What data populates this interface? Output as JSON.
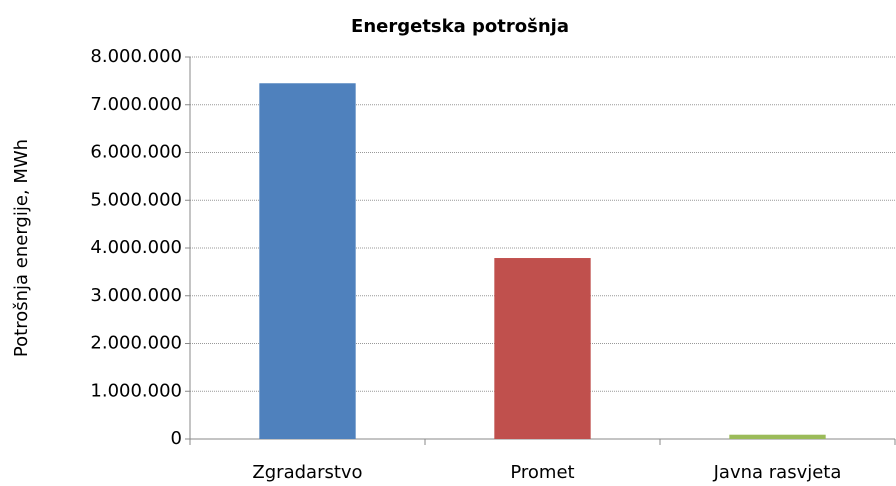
{
  "chart_data": {
    "type": "bar",
    "title": "Energetska potrošnja",
    "y_label": "Potrošnja energije, MWh",
    "categories": [
      "Zgradarstvo",
      "Promet",
      "Javna rasvjeta"
    ],
    "values": [
      7450000,
      3790000,
      90000
    ],
    "colors": [
      "#4f81bd",
      "#c0504d",
      "#9bbb59"
    ],
    "ylim": [
      0,
      8000000
    ],
    "yticks": [
      0,
      {
        "value": 1000000,
        "label": "1.000.000"
      },
      {
        "value": 2000000,
        "label": "2.000.000"
      },
      {
        "value": 3000000,
        "label": "3.000.000"
      },
      {
        "value": 4000000,
        "label": "4.000.000"
      },
      {
        "value": 5000000,
        "label": "5.000.000"
      },
      {
        "value": 6000000,
        "label": "6.000.000"
      },
      {
        "value": 7000000,
        "label": "7.000.000"
      },
      {
        "value": 8000000,
        "label": "8.000.000"
      }
    ],
    "grid": true
  }
}
